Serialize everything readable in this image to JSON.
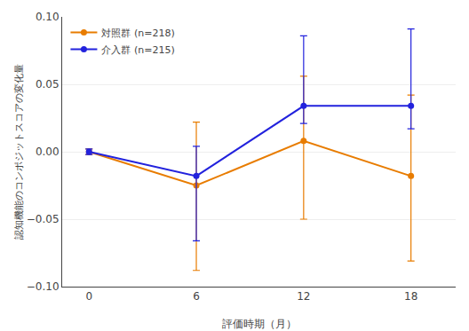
{
  "chart_data": {
    "type": "line",
    "xlabel": "評価時期（月）",
    "ylabel": "認知機能のコンポジットスコアの変化量",
    "x": [
      0,
      6,
      12,
      18
    ],
    "series": [
      {
        "name": "対照群 (n=218)",
        "color": "#e87c00",
        "marker": "circle",
        "line_style": "solid",
        "values": [
          0.0,
          -0.025,
          0.008,
          -0.018
        ],
        "error_upper": [
          0.002,
          0.047,
          0.048,
          0.06
        ],
        "error_lower": [
          0.002,
          0.063,
          0.058,
          0.063
        ]
      },
      {
        "name": "介入群 (n=215)",
        "color": "#2222dd",
        "marker": "circle",
        "line_style": "solid",
        "values": [
          0.0,
          -0.018,
          0.034,
          0.034
        ],
        "error_upper": [
          0.002,
          0.022,
          0.052,
          0.057
        ],
        "error_lower": [
          0.002,
          0.048,
          0.013,
          0.017
        ]
      }
    ],
    "xlim": [
      -1.5,
      20.5
    ],
    "xticks": [
      0,
      6,
      12,
      18
    ],
    "ylim": [
      -0.1,
      0.1
    ],
    "yticks": [
      {
        "value": -0.1,
        "label": "−0.10"
      },
      {
        "value": -0.05,
        "label": "−0.05"
      },
      {
        "value": 0.0,
        "label": "0.00"
      },
      {
        "value": 0.05,
        "label": "0.05"
      },
      {
        "value": 0.1,
        "label": "0.10"
      }
    ],
    "grid": true,
    "legend": "upper left"
  }
}
